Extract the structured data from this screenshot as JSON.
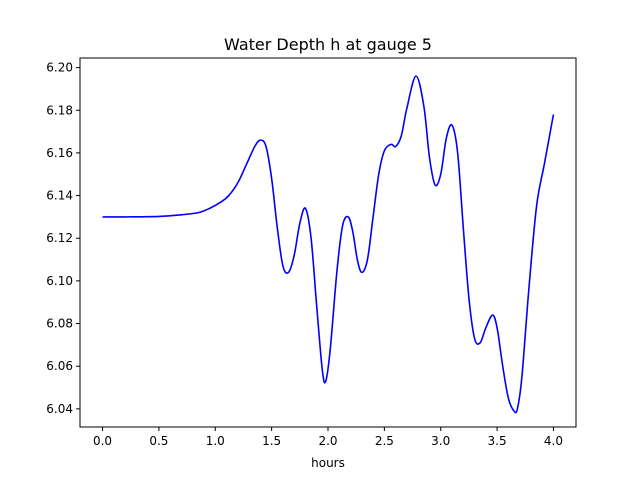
{
  "chart_data": {
    "type": "line",
    "title": "Water Depth h at gauge 5",
    "xlabel": "hours",
    "ylabel": "",
    "xlim": [
      -0.2,
      4.2
    ],
    "ylim": [
      6.0315,
      6.2045
    ],
    "xticks": [
      0.0,
      0.5,
      1.0,
      1.5,
      2.0,
      2.5,
      3.0,
      3.5,
      4.0
    ],
    "xtick_labels": [
      "0.0",
      "0.5",
      "1.0",
      "1.5",
      "2.0",
      "2.5",
      "3.0",
      "3.5",
      "4.0"
    ],
    "yticks": [
      6.04,
      6.06,
      6.08,
      6.1,
      6.12,
      6.14,
      6.16,
      6.18,
      6.2
    ],
    "ytick_labels": [
      "6.04",
      "6.06",
      "6.08",
      "6.10",
      "6.12",
      "6.14",
      "6.16",
      "6.18",
      "6.20"
    ],
    "grid": false,
    "series": [
      {
        "color": "#0000ff",
        "x": [
          0.0,
          0.2,
          0.5,
          0.7,
          0.85,
          0.95,
          1.05,
          1.12,
          1.2,
          1.28,
          1.35,
          1.4,
          1.45,
          1.5,
          1.55,
          1.6,
          1.65,
          1.7,
          1.75,
          1.8,
          1.85,
          1.9,
          1.95,
          1.98,
          2.02,
          2.08,
          2.13,
          2.18,
          2.22,
          2.26,
          2.3,
          2.35,
          2.4,
          2.45,
          2.5,
          2.56,
          2.6,
          2.65,
          2.7,
          2.78,
          2.85,
          2.9,
          2.95,
          3.0,
          3.05,
          3.1,
          3.15,
          3.2,
          3.25,
          3.3,
          3.35,
          3.4,
          3.46,
          3.5,
          3.55,
          3.6,
          3.65,
          3.68,
          3.72,
          3.78,
          3.85,
          3.92,
          4.0
        ],
        "y": [
          6.13,
          6.13,
          6.1302,
          6.131,
          6.132,
          6.134,
          6.137,
          6.14,
          6.146,
          6.155,
          6.163,
          6.166,
          6.163,
          6.148,
          6.125,
          6.107,
          6.104,
          6.112,
          6.127,
          6.134,
          6.12,
          6.088,
          6.058,
          6.053,
          6.068,
          6.105,
          6.126,
          6.13,
          6.123,
          6.11,
          6.104,
          6.11,
          6.13,
          6.15,
          6.161,
          6.164,
          6.163,
          6.168,
          6.181,
          6.196,
          6.182,
          6.158,
          6.145,
          6.15,
          6.167,
          6.173,
          6.16,
          6.125,
          6.092,
          6.073,
          6.071,
          6.078,
          6.084,
          6.078,
          6.06,
          6.045,
          6.039,
          6.04,
          6.055,
          6.095,
          6.135,
          6.155,
          6.178
        ]
      }
    ]
  }
}
